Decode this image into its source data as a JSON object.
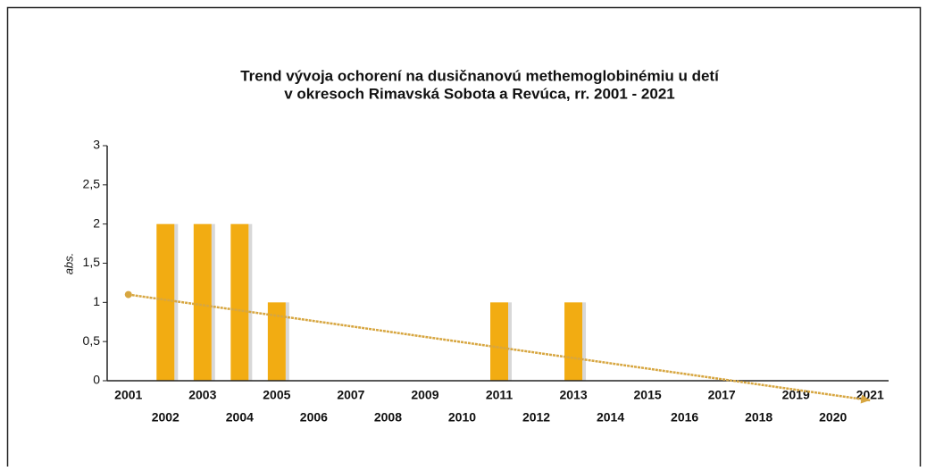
{
  "chart_data": {
    "type": "bar",
    "title": [
      "Trend vývoja ochorení na dusičnanovú methemoglobinémiu u detí",
      "v okresoch  Rimavská Sobota a Revúca, rr. 2001 - 2021"
    ],
    "y_label": "abs.",
    "categories": [
      "2001",
      "2002",
      "2003",
      "2004",
      "2005",
      "2006",
      "2007",
      "2008",
      "2009",
      "2010",
      "2011",
      "2012",
      "2013",
      "2014",
      "2015",
      "2016",
      "2017",
      "2018",
      "2019",
      "2020",
      "2021"
    ],
    "values": [
      0,
      2,
      2,
      2,
      1,
      0,
      0,
      0,
      0,
      0,
      1,
      0,
      1,
      0,
      0,
      0,
      0,
      0,
      0,
      0,
      0
    ],
    "color": "#f2ac12",
    "trend_line": {
      "color": "#d7a640",
      "values": [
        1.1,
        -0.25
      ]
    },
    "ylim": [
      0,
      3
    ],
    "yticks": [
      0,
      {
        "value": 0.5,
        "label": "0,5"
      },
      1,
      {
        "value": 1.5,
        "label": "1,5"
      },
      2,
      {
        "value": 2.5,
        "label": "2,5"
      },
      3
    ]
  }
}
